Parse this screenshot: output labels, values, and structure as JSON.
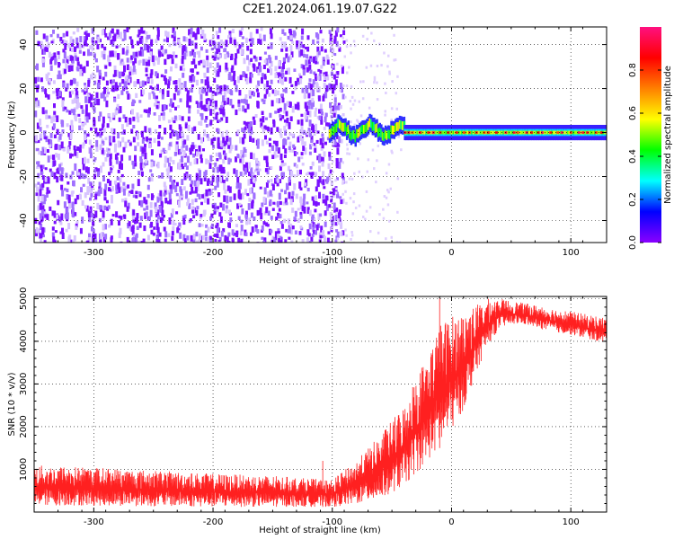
{
  "title": "C2E1.2024.061.19.07.G22",
  "chart_data": [
    {
      "type": "heatmap",
      "xlabel": "Height of straight line (km)",
      "ylabel": "Frequency (Hz)",
      "xlim": [
        -350,
        130
      ],
      "ylim": [
        -50,
        48
      ],
      "x_ticks": [
        -300,
        -200,
        -100,
        0,
        100
      ],
      "y_ticks": [
        -40,
        -20,
        0,
        20,
        40
      ],
      "grid": true,
      "colorbar": {
        "label": "Normalized spectral amplitude",
        "range": [
          0,
          1
        ],
        "ticks": [
          0.0,
          0.2,
          0.4,
          0.6,
          0.8
        ],
        "colormap": [
          "#8a00ff",
          "#0000ff",
          "#00ffff",
          "#00ff00",
          "#ffff00",
          "#ff8000",
          "#ff0000",
          "#ff1080"
        ]
      },
      "regions": [
        {
          "x_range": [
            -350,
            -103
          ],
          "freq_range": [
            -50,
            48
          ],
          "amplitude": 0.1,
          "pattern": "broadband noise"
        },
        {
          "x_range": [
            -103,
            -40
          ],
          "freq_center": 1,
          "freq_halfwidth": 4,
          "amplitude": 0.5,
          "pattern": "wavering signal onset"
        },
        {
          "x_range": [
            -40,
            130
          ],
          "freq_center": 0,
          "freq_halfwidth": 2,
          "amplitude": 0.85,
          "pattern": "steady narrowband signal"
        }
      ]
    },
    {
      "type": "line",
      "xlabel": "Height of straight line (km)",
      "ylabel": "SNR (10 * v/v)",
      "xlim": [
        -350,
        130
      ],
      "ylim": [
        0,
        5050
      ],
      "x_ticks": [
        -300,
        -200,
        -100,
        0,
        100
      ],
      "y_ticks": [
        1000,
        2000,
        3000,
        4000,
        5000
      ],
      "grid": true,
      "series_color": "#ff2020",
      "envelope": {
        "x": [
          -350,
          -300,
          -200,
          -150,
          -100,
          -80,
          -60,
          -40,
          -30,
          -20,
          -10,
          0,
          10,
          20,
          30,
          40,
          50,
          60,
          80,
          100,
          130
        ],
        "low": [
          150,
          150,
          120,
          120,
          120,
          180,
          300,
          600,
          900,
          1200,
          1500,
          1900,
          2400,
          3200,
          3900,
          4300,
          4400,
          4400,
          4250,
          4150,
          3950
        ],
        "high": [
          1100,
          1050,
          900,
          850,
          750,
          1200,
          1800,
          2500,
          3200,
          3700,
          4400,
          4600,
          4700,
          4850,
          5000,
          5000,
          4950,
          4900,
          4800,
          4700,
          4550
        ]
      },
      "spikes": [
        {
          "x": -350,
          "y": 1500
        },
        {
          "x": -108,
          "y": 1200
        },
        {
          "x": -10,
          "y": 5000
        }
      ]
    }
  ]
}
